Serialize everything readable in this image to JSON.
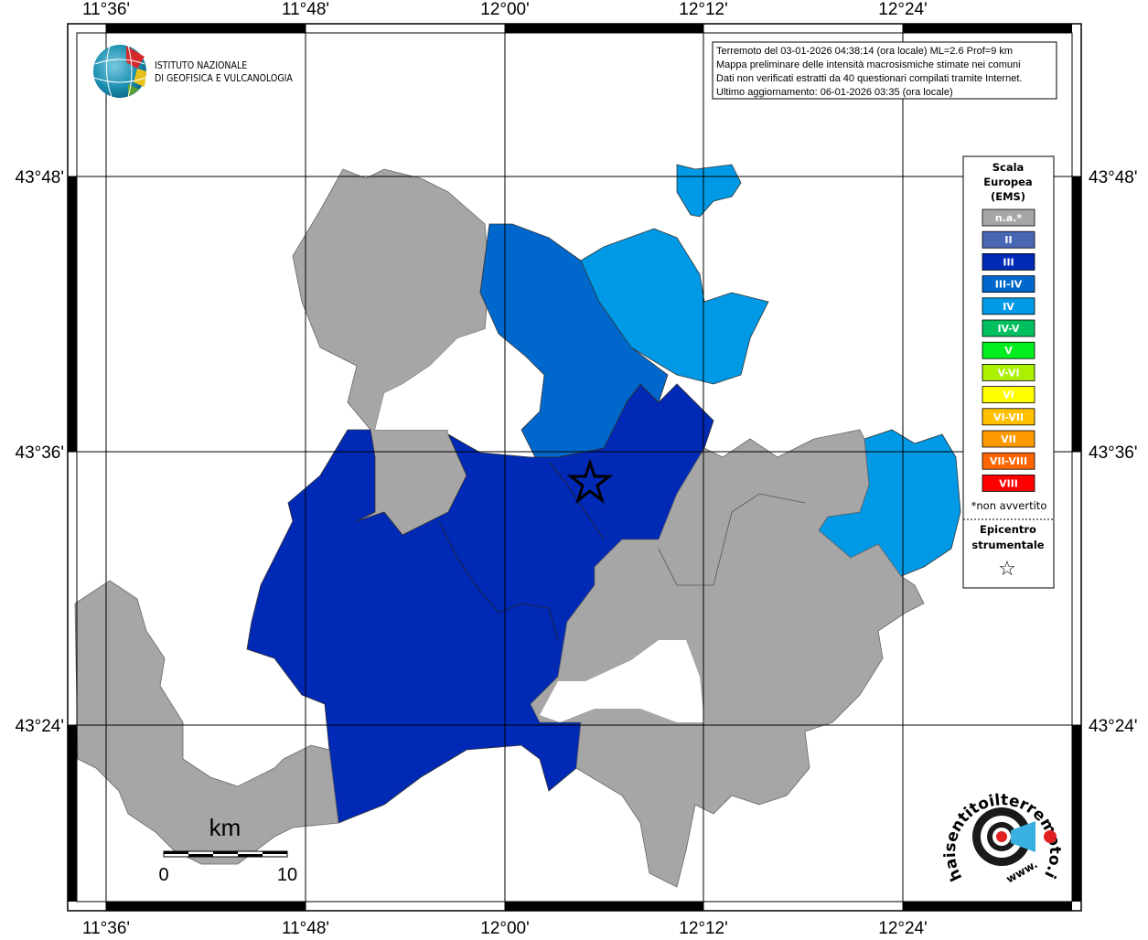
{
  "grid": {
    "lon_labels": [
      "11°36'",
      "11°48'",
      "12°00'",
      "12°12'",
      "12°24'"
    ],
    "lat_labels": [
      "43°48'",
      "43°36'",
      "43°24'"
    ]
  },
  "logo": {
    "line1": "ISTITUTO NAZIONALE",
    "line2": "DI GEOFISICA E VULCANOLOGIA"
  },
  "info": [
    "Terremoto del 03-01-2026 04:38:14 (ora locale) ML=2.6 Prof=9 km",
    "Mappa preliminare delle intensità macrosismiche stimate nei comuni",
    "Dati non verificati estratti da 40 questionari compilati tramite Internet.",
    "Ultimo aggiornamento: 06-01-2026 03:35 (ora locale)"
  ],
  "legend": {
    "title": [
      "Scala",
      "Europea",
      "(EMS)"
    ],
    "classes": [
      {
        "label": "n.a.*",
        "color": "#a6a6a6"
      },
      {
        "label": "II",
        "color": "#4a67b3"
      },
      {
        "label": "III",
        "color": "#0029b5"
      },
      {
        "label": "III-IV",
        "color": "#0068cc"
      },
      {
        "label": "IV",
        "color": "#0099e6"
      },
      {
        "label": "IV-V",
        "color": "#00c060"
      },
      {
        "label": "V",
        "color": "#00ee20"
      },
      {
        "label": "V-VI",
        "color": "#aaf000"
      },
      {
        "label": "VI",
        "color": "#ffff00"
      },
      {
        "label": "VI-VII",
        "color": "#ffc000"
      },
      {
        "label": "VII",
        "color": "#ff9900"
      },
      {
        "label": "VII-VIII",
        "color": "#ff6600"
      },
      {
        "label": "VIII",
        "color": "#ff0000"
      }
    ],
    "note": "*non avvertito",
    "epicenter": [
      "Epicentro",
      "strumentale"
    ],
    "star": "☆"
  },
  "scale_bar": {
    "unit": "km",
    "start": "0",
    "end": "10"
  },
  "brand": {
    "name": "haisentitoilterremoto.it",
    "prefix": "www."
  }
}
